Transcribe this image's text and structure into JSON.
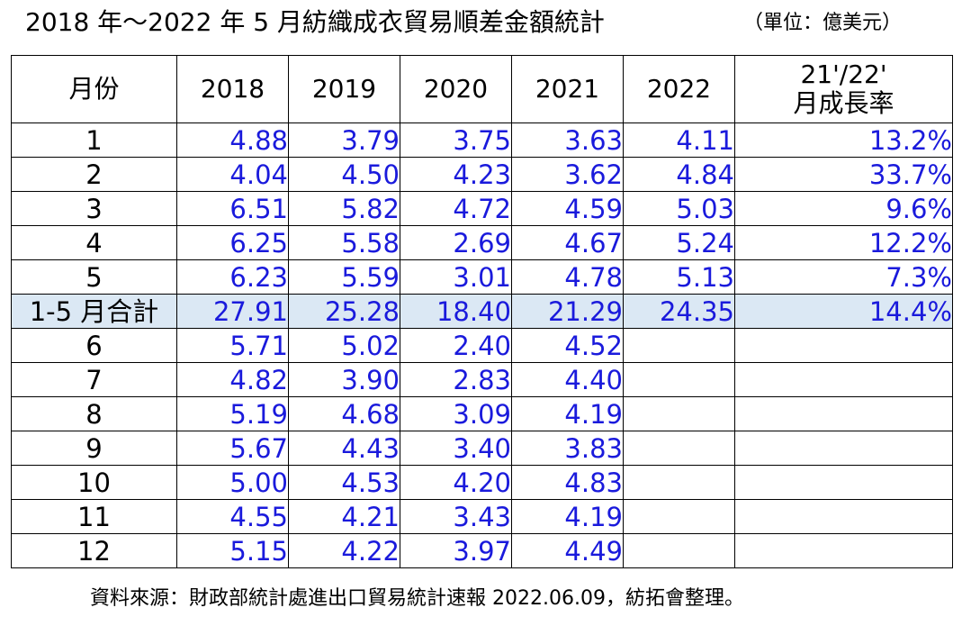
{
  "title": "2018 年～2022 年 5 月紡織成衣貿易順差金額統計",
  "unit": "（單位：億美元）",
  "table": {
    "headers": [
      "月份",
      "2018",
      "2019",
      "2020",
      "2021",
      "2022",
      "21'/22'",
      "月成長率"
    ],
    "rows": [
      {
        "month": "1",
        "y2018": "4.88",
        "y2019": "3.79",
        "y2020": "3.75",
        "y2021": "3.63",
        "y2022": "4.11",
        "growth": "13.2%"
      },
      {
        "month": "2",
        "y2018": "4.04",
        "y2019": "4.50",
        "y2020": "4.23",
        "y2021": "3.62",
        "y2022": "4.84",
        "growth": "33.7%"
      },
      {
        "month": "3",
        "y2018": "6.51",
        "y2019": "5.82",
        "y2020": "4.72",
        "y2021": "4.59",
        "y2022": "5.03",
        "growth": "9.6%"
      },
      {
        "month": "4",
        "y2018": "6.25",
        "y2019": "5.58",
        "y2020": "2.69",
        "y2021": "4.67",
        "y2022": "5.24",
        "growth": "12.2%"
      },
      {
        "month": "5",
        "y2018": "6.23",
        "y2019": "5.59",
        "y2020": "3.01",
        "y2021": "4.78",
        "y2022": "5.13",
        "growth": "7.3%"
      },
      {
        "month": "1-5 月合計",
        "y2018": "27.91",
        "y2019": "25.28",
        "y2020": "18.40",
        "y2021": "21.29",
        "y2022": "24.35",
        "growth": "14.4%"
      },
      {
        "month": "6",
        "y2018": "5.71",
        "y2019": "5.02",
        "y2020": "2.40",
        "y2021": "4.52",
        "y2022": "",
        "growth": ""
      },
      {
        "month": "7",
        "y2018": "4.82",
        "y2019": "3.90",
        "y2020": "2.83",
        "y2021": "4.40",
        "y2022": "",
        "growth": ""
      },
      {
        "month": "8",
        "y2018": "5.19",
        "y2019": "4.68",
        "y2020": "3.09",
        "y2021": "4.19",
        "y2022": "",
        "growth": ""
      },
      {
        "month": "9",
        "y2018": "5.67",
        "y2019": "4.43",
        "y2020": "3.40",
        "y2021": "3.83",
        "y2022": "",
        "growth": ""
      },
      {
        "month": "10",
        "y2018": "5.00",
        "y2019": "4.53",
        "y2020": "4.20",
        "y2021": "4.83",
        "y2022": "",
        "growth": ""
      },
      {
        "month": "11",
        "y2018": "4.55",
        "y2019": "4.21",
        "y2020": "3.43",
        "y2021": "4.19",
        "y2022": "",
        "growth": ""
      },
      {
        "month": "12",
        "y2018": "5.15",
        "y2019": "4.22",
        "y2020": "3.97",
        "y2021": "4.49",
        "y2022": "",
        "growth": ""
      }
    ]
  },
  "source": "資料來源：財政部統計處進出口貿易統計速報 2022.06.09，紡拓會整理。",
  "colors": {
    "value_text": "#1a1adc",
    "total_row_bg": "#dbe8f4",
    "border": "#000000"
  }
}
